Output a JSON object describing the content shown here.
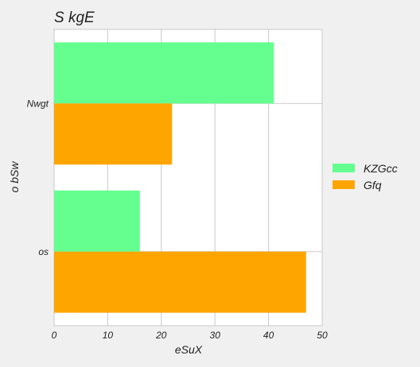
{
  "chart_data": {
    "type": "bar",
    "orientation": "horizontal",
    "title": "S  kgE",
    "xlabel": "eSuX",
    "ylabel": "o bSw",
    "categories": [
      "Nwgt",
      "os"
    ],
    "series": [
      {
        "name": "KZGcc",
        "values": [
          41,
          16
        ],
        "color": "#64ff8f"
      },
      {
        "name": "Gfq",
        "values": [
          22,
          47
        ],
        "color": "#ffa500"
      }
    ],
    "xlim": [
      0,
      50
    ],
    "xticks": [
      0,
      10,
      20,
      30,
      40,
      50
    ],
    "grid": true,
    "legend": "right"
  }
}
